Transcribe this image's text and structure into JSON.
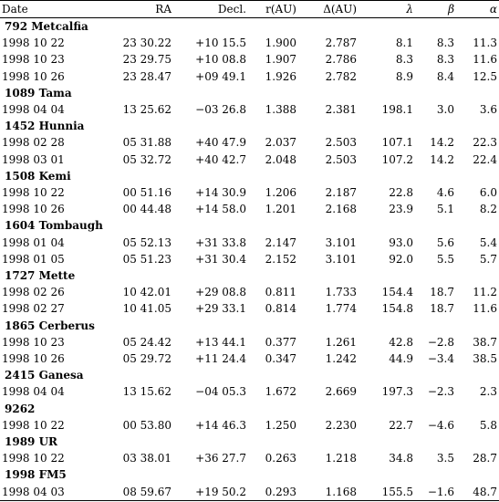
{
  "table": {
    "headers": {
      "date": "Date",
      "ra": "RA",
      "decl": "Decl.",
      "r": "r(AU)",
      "delta": "Δ(AU)",
      "lambda": "λ",
      "beta": "β",
      "alpha": "α"
    },
    "groups": [
      {
        "name": "792 Metcalfia",
        "rows": [
          [
            "1998 10 22",
            "23 30.22",
            "+10 15.5",
            "1.900",
            "2.787",
            "8.1",
            "8.3",
            "11.3"
          ],
          [
            "1998 10 23",
            "23 29.75",
            "+10 08.8",
            "1.907",
            "2.786",
            "8.3",
            "8.3",
            "11.6"
          ],
          [
            "1998 10 26",
            "23 28.47",
            "+09 49.1",
            "1.926",
            "2.782",
            "8.9",
            "8.4",
            "12.5"
          ]
        ]
      },
      {
        "name": "1089 Tama",
        "rows": [
          [
            "1998 04 04",
            "13 25.62",
            "−03 26.8",
            "1.388",
            "2.381",
            "198.1",
            "3.0",
            "3.6"
          ]
        ]
      },
      {
        "name": "1452 Hunnia",
        "rows": [
          [
            "1998 02 28",
            "05 31.88",
            "+40 47.9",
            "2.037",
            "2.503",
            "107.1",
            "14.2",
            "22.3"
          ],
          [
            "1998 03 01",
            "05 32.72",
            "+40 42.7",
            "2.048",
            "2.503",
            "107.2",
            "14.2",
            "22.4"
          ]
        ]
      },
      {
        "name": "1508 Kemi",
        "rows": [
          [
            "1998 10 22",
            "00 51.16",
            "+14 30.9",
            "1.206",
            "2.187",
            "22.8",
            "4.6",
            "6.0"
          ],
          [
            "1998 10 26",
            "00 44.48",
            "+14 58.0",
            "1.201",
            "2.168",
            "23.9",
            "5.1",
            "8.2"
          ]
        ]
      },
      {
        "name": "1604 Tombaugh",
        "rows": [
          [
            "1998 01 04",
            "05 52.13",
            "+31 33.8",
            "2.147",
            "3.101",
            "93.0",
            "5.6",
            "5.4"
          ],
          [
            "1998 01 05",
            "05 51.23",
            "+31 30.4",
            "2.152",
            "3.101",
            "92.0",
            "5.5",
            "5.7"
          ]
        ]
      },
      {
        "name": "1727 Mette",
        "rows": [
          [
            "1998 02 26",
            "10 42.01",
            "+29 08.8",
            "0.811",
            "1.733",
            "154.4",
            "18.7",
            "11.2"
          ],
          [
            "1998 02 27",
            "10 41.05",
            "+29 33.1",
            "0.814",
            "1.774",
            "154.8",
            "18.7",
            "11.6"
          ]
        ]
      },
      {
        "name": "1865 Cerberus",
        "rows": [
          [
            "1998 10 23",
            "05 24.42",
            "+13 44.1",
            "0.377",
            "1.261",
            "42.8",
            "−2.8",
            "38.7"
          ],
          [
            "1998 10 26",
            "05 29.72",
            "+11 24.4",
            "0.347",
            "1.242",
            "44.9",
            "−3.4",
            "38.5"
          ]
        ]
      },
      {
        "name": "2415 Ganesa",
        "rows": [
          [
            "1998 04 04",
            "13 15.62",
            "−04 05.3",
            "1.672",
            "2.669",
            "197.3",
            "−2.3",
            "2.3"
          ]
        ]
      },
      {
        "name": "9262",
        "rows": [
          [
            "1998 10 22",
            "00 53.80",
            "+14 46.3",
            "1.250",
            "2.230",
            "22.7",
            "−4.6",
            "5.8"
          ]
        ]
      },
      {
        "name": "1989 UR",
        "rows": [
          [
            "1998 10 22",
            "03 38.01",
            "+36 27.7",
            "0.263",
            "1.218",
            "34.8",
            "3.5",
            "28.7"
          ]
        ]
      },
      {
        "name": "1998 FM5",
        "rows": [
          [
            "1998 04 03",
            "08 59.67",
            "+19 50.2",
            "0.293",
            "1.168",
            "155.5",
            "−1.6",
            "48.7"
          ]
        ]
      }
    ]
  }
}
